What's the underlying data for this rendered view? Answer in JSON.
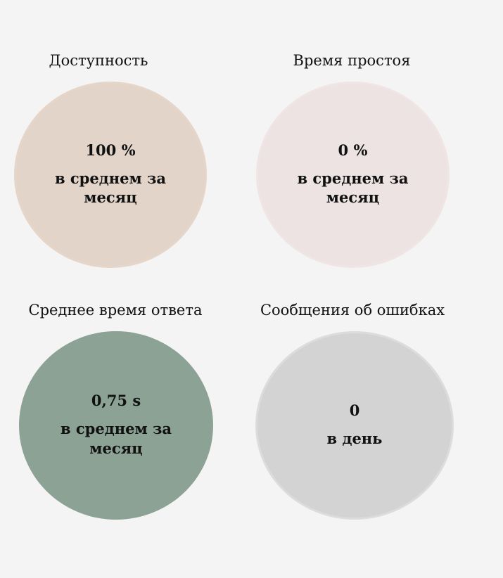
{
  "cards": [
    {
      "title": "Доступность",
      "value": "100 %",
      "caption": "в среднем за месяц",
      "color": "#e2d4c8"
    },
    {
      "title": "Время простоя",
      "value": "0 %",
      "caption": "в среднем за месяц",
      "color": "#ede3e3"
    },
    {
      "title": "Среднее время ответа",
      "value": "0,75 s",
      "caption": "в среднем за месяц",
      "color": "#8ca295"
    },
    {
      "title": "Сообщения об ошибках",
      "value": "0",
      "caption": "в день",
      "color": "#d3d3d3"
    }
  ],
  "page": {
    "background": "#f4f4f4"
  }
}
